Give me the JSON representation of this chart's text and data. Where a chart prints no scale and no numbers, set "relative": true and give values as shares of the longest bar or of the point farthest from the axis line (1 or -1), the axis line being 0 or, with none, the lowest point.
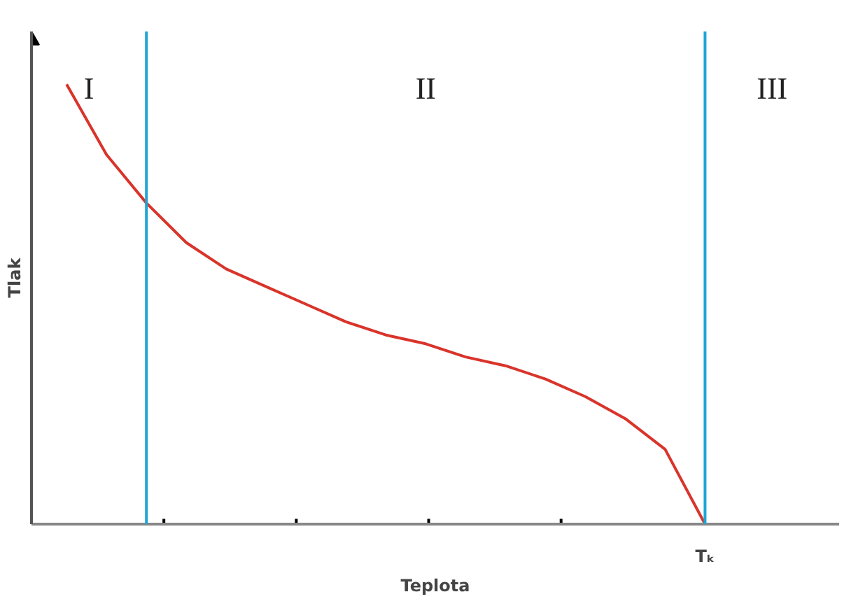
{
  "chart_data": {
    "type": "line",
    "relative": true,
    "xlabel": "Teplota",
    "ylabel": "Tlak",
    "categories": [
      null,
      null,
      null,
      null,
      null,
      null,
      null,
      null,
      null,
      null,
      null,
      null,
      null,
      null,
      null,
      null,
      null
    ],
    "series": [
      {
        "color": "#d9342b",
        "values": [
          1.0,
          0.84,
          0.73,
          0.64,
          0.58,
          0.54,
          0.5,
          0.46,
          0.43,
          0.41,
          0.38,
          0.36,
          0.33,
          0.29,
          0.24,
          0.17,
          0
        ]
      }
    ],
    "annotations": [
      "I",
      "II",
      "III",
      "Tₖ"
    ]
  }
}
